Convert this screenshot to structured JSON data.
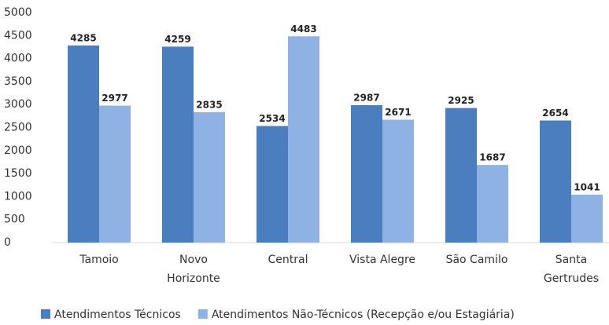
{
  "chart_data": {
    "type": "bar",
    "categories": [
      "Tamoio",
      "Novo\nHorizonte",
      "Central",
      "Vista Alegre",
      "São Camilo",
      "Santa\nGertrudes"
    ],
    "series": [
      {
        "name": "Atendimentos Técnicos",
        "color": "#4a7ebf",
        "values": [
          4285,
          4259,
          2534,
          2987,
          2925,
          2654
        ]
      },
      {
        "name": "Atendimentos Não-Técnicos (Recepção e/ou Estagiária)",
        "color": "#8db2e3",
        "values": [
          2977,
          2835,
          4483,
          2671,
          1687,
          1041
        ]
      }
    ],
    "ylim": [
      0,
      5000
    ],
    "yticks": [
      0,
      500,
      1000,
      1500,
      2000,
      2500,
      3000,
      3500,
      4000,
      4500,
      5000
    ],
    "grid": false,
    "legend": "bottom"
  }
}
